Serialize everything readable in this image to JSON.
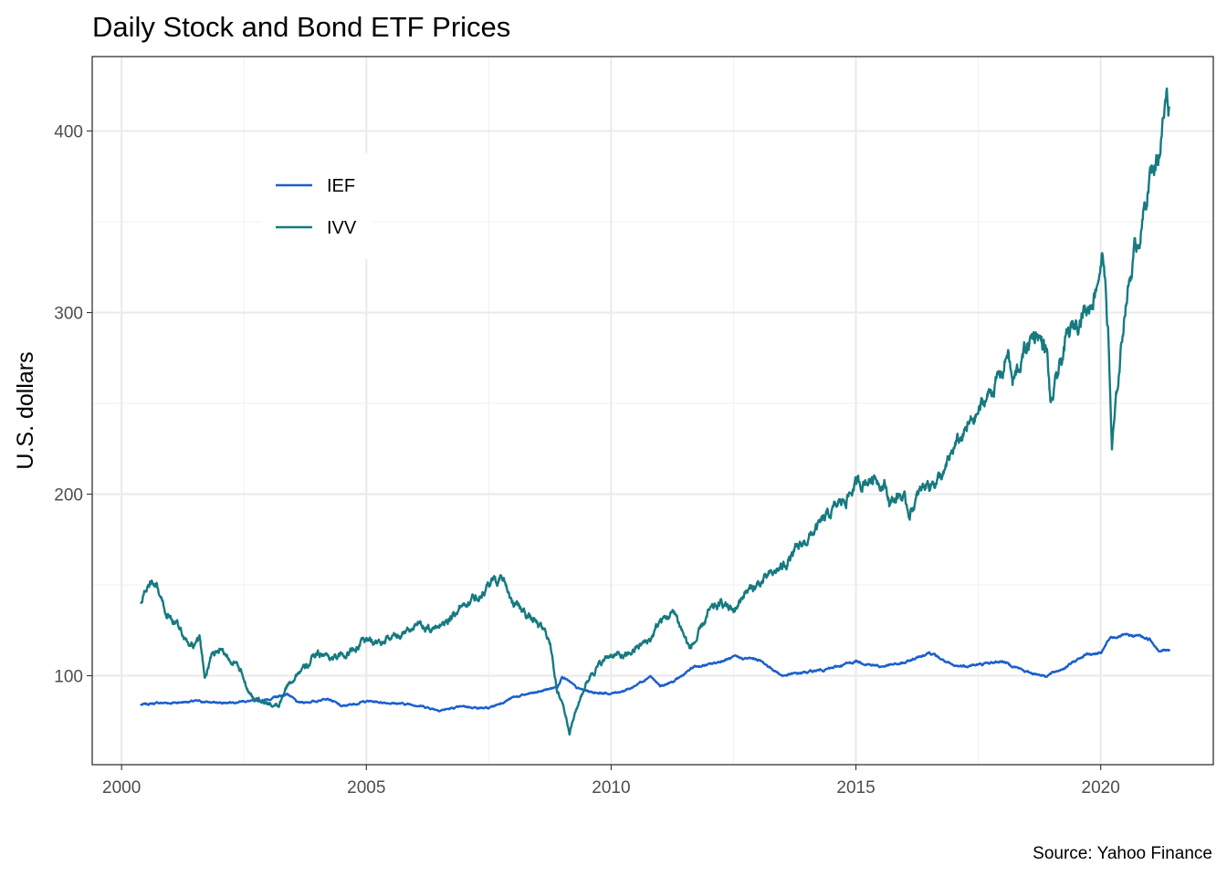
{
  "chart_data": {
    "type": "line",
    "title": "Daily Stock and Bond ETF Prices",
    "ylabel": "U.S. dollars",
    "xlabel": "",
    "caption": "Source: Yahoo Finance",
    "x_ticks": [
      2000,
      2005,
      2010,
      2015,
      2020
    ],
    "y_ticks": [
      100,
      200,
      300,
      400
    ],
    "xlim": [
      1999.4,
      2022.3
    ],
    "ylim": [
      51,
      441
    ],
    "grid": true,
    "legend_position": "top-left",
    "series": [
      {
        "name": "IEF",
        "color": "#1a5fcc",
        "x": [
          2000.4,
          2000.75,
          2001.0,
          2001.5,
          2002.0,
          2002.5,
          2002.8,
          2003.0,
          2003.4,
          2003.6,
          2004.0,
          2004.2,
          2004.5,
          2005.0,
          2005.5,
          2006.0,
          2006.5,
          2007.0,
          2007.5,
          2008.0,
          2008.5,
          2008.9,
          2009.0,
          2009.3,
          2009.6,
          2010.0,
          2010.4,
          2010.8,
          2011.0,
          2011.3,
          2011.7,
          2012.0,
          2012.5,
          2013.0,
          2013.5,
          2014.0,
          2014.5,
          2015.0,
          2015.5,
          2016.0,
          2016.5,
          2017.0,
          2017.5,
          2018.0,
          2018.5,
          2018.9,
          2019.3,
          2019.7,
          2020.0,
          2020.2,
          2020.5,
          2020.8,
          2021.0,
          2021.2,
          2021.4
        ],
        "values": [
          84,
          85,
          85,
          86,
          85,
          86,
          86,
          87,
          90,
          85,
          86,
          88,
          83,
          86,
          85,
          84,
          81,
          83,
          82,
          88,
          91,
          94,
          100,
          93,
          91,
          90,
          93,
          100,
          94,
          97,
          105,
          106,
          110,
          109,
          100,
          102,
          104,
          108,
          105,
          107,
          113,
          105,
          106,
          108,
          102,
          100,
          105,
          112,
          112,
          121,
          122,
          122,
          120,
          114,
          114
        ]
      },
      {
        "name": "IVV",
        "color": "#167a80",
        "x": [
          2000.4,
          2000.5,
          2000.6,
          2000.75,
          2000.9,
          2001.0,
          2001.2,
          2001.4,
          2001.6,
          2001.7,
          2001.85,
          2002.0,
          2002.3,
          2002.5,
          2002.7,
          2002.8,
          2003.0,
          2003.2,
          2003.4,
          2003.6,
          2003.8,
          2004.0,
          2004.3,
          2004.6,
          2005.0,
          2005.3,
          2005.6,
          2006.0,
          2006.3,
          2006.6,
          2007.0,
          2007.3,
          2007.6,
          2007.8,
          2008.0,
          2008.2,
          2008.5,
          2008.7,
          2008.8,
          2008.9,
          2009.0,
          2009.15,
          2009.4,
          2009.6,
          2010.0,
          2010.3,
          2010.5,
          2010.8,
          2011.0,
          2011.3,
          2011.6,
          2011.75,
          2012.0,
          2012.3,
          2012.5,
          2012.7,
          2013.0,
          2013.5,
          2014.0,
          2014.5,
          2014.8,
          2015.0,
          2015.4,
          2015.6,
          2015.7,
          2015.9,
          2016.1,
          2016.4,
          2016.8,
          2017.0,
          2017.5,
          2018.0,
          2018.1,
          2018.2,
          2018.5,
          2018.7,
          2018.9,
          2018.98,
          2019.3,
          2019.6,
          2019.8,
          2020.05,
          2020.15,
          2020.23,
          2020.35,
          2020.5,
          2020.7,
          2020.85,
          2021.0,
          2021.2,
          2021.35,
          2021.4
        ],
        "values": [
          140,
          148,
          150,
          145,
          135,
          132,
          125,
          115,
          118,
          100,
          112,
          115,
          108,
          98,
          86,
          88,
          85,
          82,
          95,
          102,
          105,
          113,
          110,
          112,
          120,
          118,
          122,
          128,
          125,
          130,
          140,
          145,
          152,
          155,
          140,
          136,
          128,
          122,
          112,
          90,
          86,
          70,
          90,
          102,
          112,
          110,
          115,
          120,
          130,
          135,
          115,
          120,
          135,
          140,
          135,
          145,
          150,
          160,
          175,
          190,
          198,
          205,
          210,
          205,
          195,
          200,
          190,
          205,
          210,
          225,
          245,
          268,
          280,
          260,
          282,
          290,
          278,
          248,
          285,
          300,
          305,
          332,
          290,
          225,
          260,
          305,
          335,
          350,
          375,
          390,
          420,
          413
        ]
      }
    ]
  }
}
